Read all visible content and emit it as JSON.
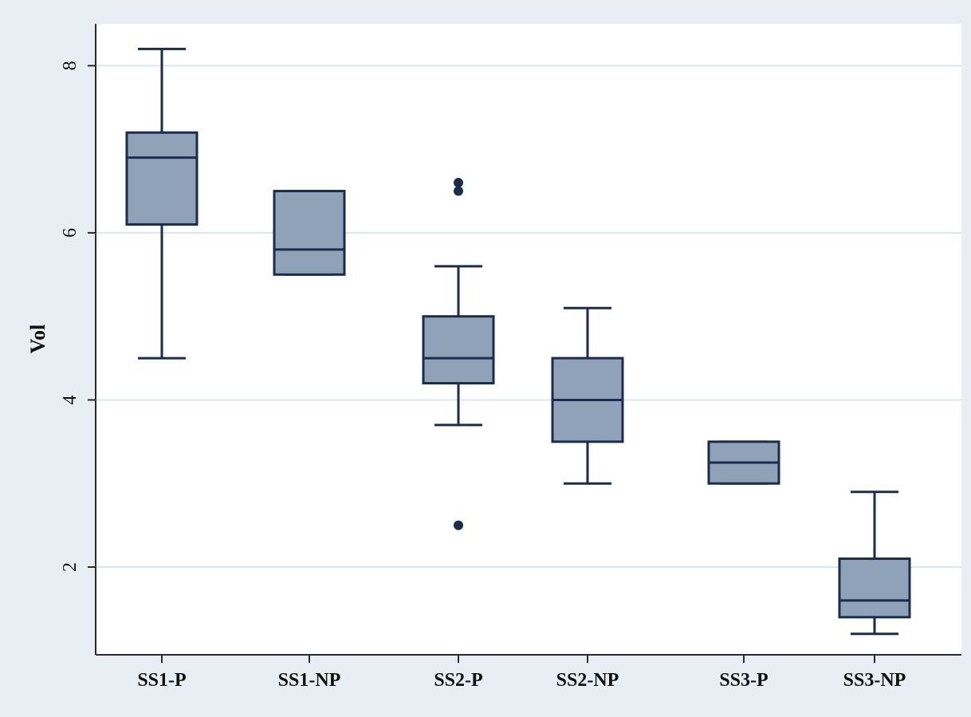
{
  "chart_data": {
    "type": "box",
    "ylabel": "Vol",
    "xlabel": "",
    "ylim": [
      0.95,
      8.5
    ],
    "yticks": [
      2,
      4,
      6,
      8
    ],
    "grid": true,
    "categories": [
      "SS1-P",
      "SS1-NP",
      "SS2-P",
      "SS2-NP",
      "SS3-P",
      "SS3-NP"
    ],
    "boxes": [
      {
        "category": "SS1-P",
        "whisker_low": 4.5,
        "q1": 6.1,
        "median": 6.9,
        "q3": 7.2,
        "whisker_high": 8.2,
        "outliers": []
      },
      {
        "category": "SS1-NP",
        "whisker_low": 5.5,
        "q1": 5.5,
        "median": 5.8,
        "q3": 6.5,
        "whisker_high": 6.5,
        "outliers": []
      },
      {
        "category": "SS2-P",
        "whisker_low": 3.7,
        "q1": 4.2,
        "median": 4.5,
        "q3": 5.0,
        "whisker_high": 5.6,
        "outliers": [
          6.6,
          6.5,
          2.5
        ]
      },
      {
        "category": "SS2-NP",
        "whisker_low": 3.0,
        "q1": 3.5,
        "median": 4.0,
        "q3": 4.5,
        "whisker_high": 5.1,
        "outliers": []
      },
      {
        "category": "SS3-P",
        "whisker_low": 3.0,
        "q1": 3.0,
        "median": 3.25,
        "q3": 3.5,
        "whisker_high": 3.5,
        "outliers": []
      },
      {
        "category": "SS3-NP",
        "whisker_low": 1.2,
        "q1": 1.4,
        "median": 1.6,
        "q3": 2.1,
        "whisker_high": 2.9,
        "outliers": []
      }
    ],
    "colors": {
      "page_background": "#e8eef3",
      "plot_background": "#ffffff",
      "box_fill": "#8fa2b7",
      "box_stroke": "#1b2d4f",
      "grid": "#dbe6ef",
      "axis": "#2b2b2b",
      "outlier": "#1b2d4f"
    }
  }
}
